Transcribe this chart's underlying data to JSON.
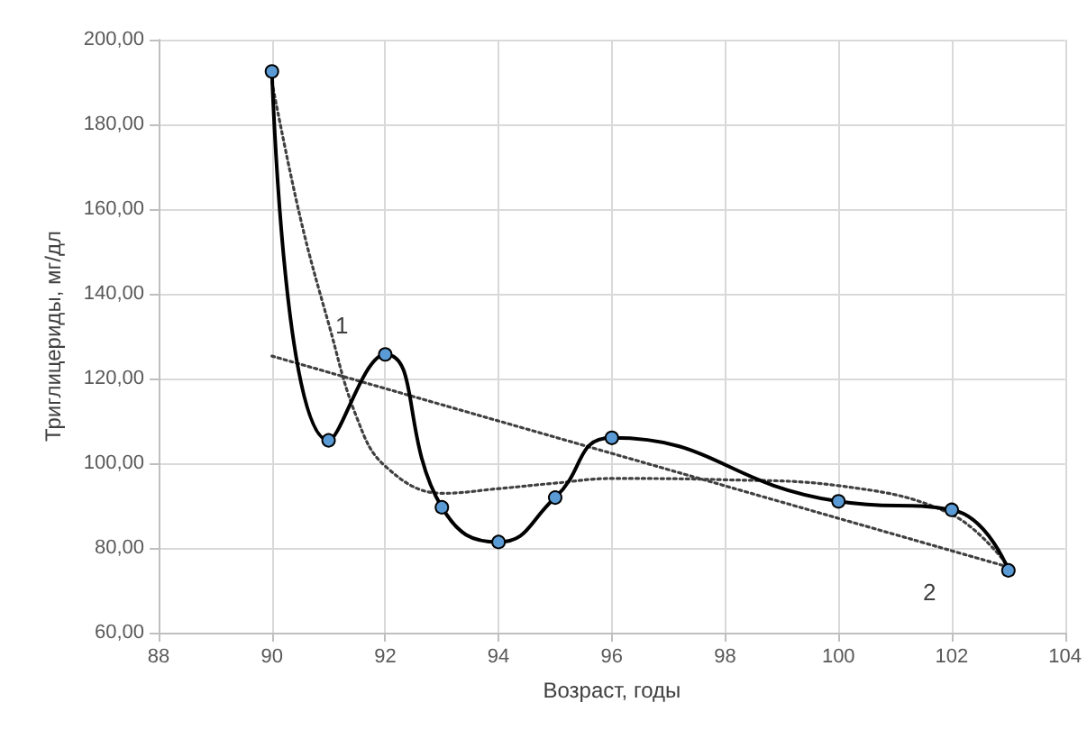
{
  "chart_data": {
    "type": "line",
    "xlabel": "Возраст, годы",
    "ylabel": "Триглицериды, мг/дл",
    "xlim": [
      88,
      104
    ],
    "xticks": [
      88,
      90,
      92,
      94,
      96,
      98,
      100,
      102,
      104
    ],
    "ylim": [
      60,
      200
    ],
    "yticks": [
      {
        "value": 60,
        "label": "60,00"
      },
      {
        "value": 80,
        "label": "80,00"
      },
      {
        "value": 100,
        "label": "100,00"
      },
      {
        "value": 120,
        "label": "120,00"
      },
      {
        "value": 140,
        "label": "140,00"
      },
      {
        "value": 160,
        "label": "160,00"
      },
      {
        "value": 180,
        "label": "180,00"
      },
      {
        "value": 200,
        "label": "200,00"
      }
    ],
    "grid": true,
    "series": [
      {
        "color": "#000000",
        "marker": "circle",
        "line_style": "solid",
        "x": [
          90,
          91,
          92,
          93,
          94,
          95,
          96,
          100,
          102,
          103
        ],
        "values": [
          192.5,
          105.4,
          125.7,
          89.6,
          81.4,
          91.9,
          106,
          91,
          89,
          74.7
        ]
      },
      {
        "color": "#404040",
        "marker": "none",
        "line_style": "dotted",
        "x": [
          90,
          90.5,
          91,
          91.5,
          92,
          93,
          94,
          95,
          96,
          98,
          100,
          102,
          103
        ],
        "values": [
          190,
          158,
          133,
          110.7,
          99.3,
          92.9,
          94,
          95.3,
          96.4,
          96.1,
          94.7,
          87.9,
          75.7
        ]
      },
      {
        "color": "#404040",
        "marker": "none",
        "line_style": "dotted",
        "x": [
          90,
          103
        ],
        "values": [
          125.3,
          75.5
        ]
      }
    ],
    "annotations": [
      "1",
      "2"
    ]
  }
}
